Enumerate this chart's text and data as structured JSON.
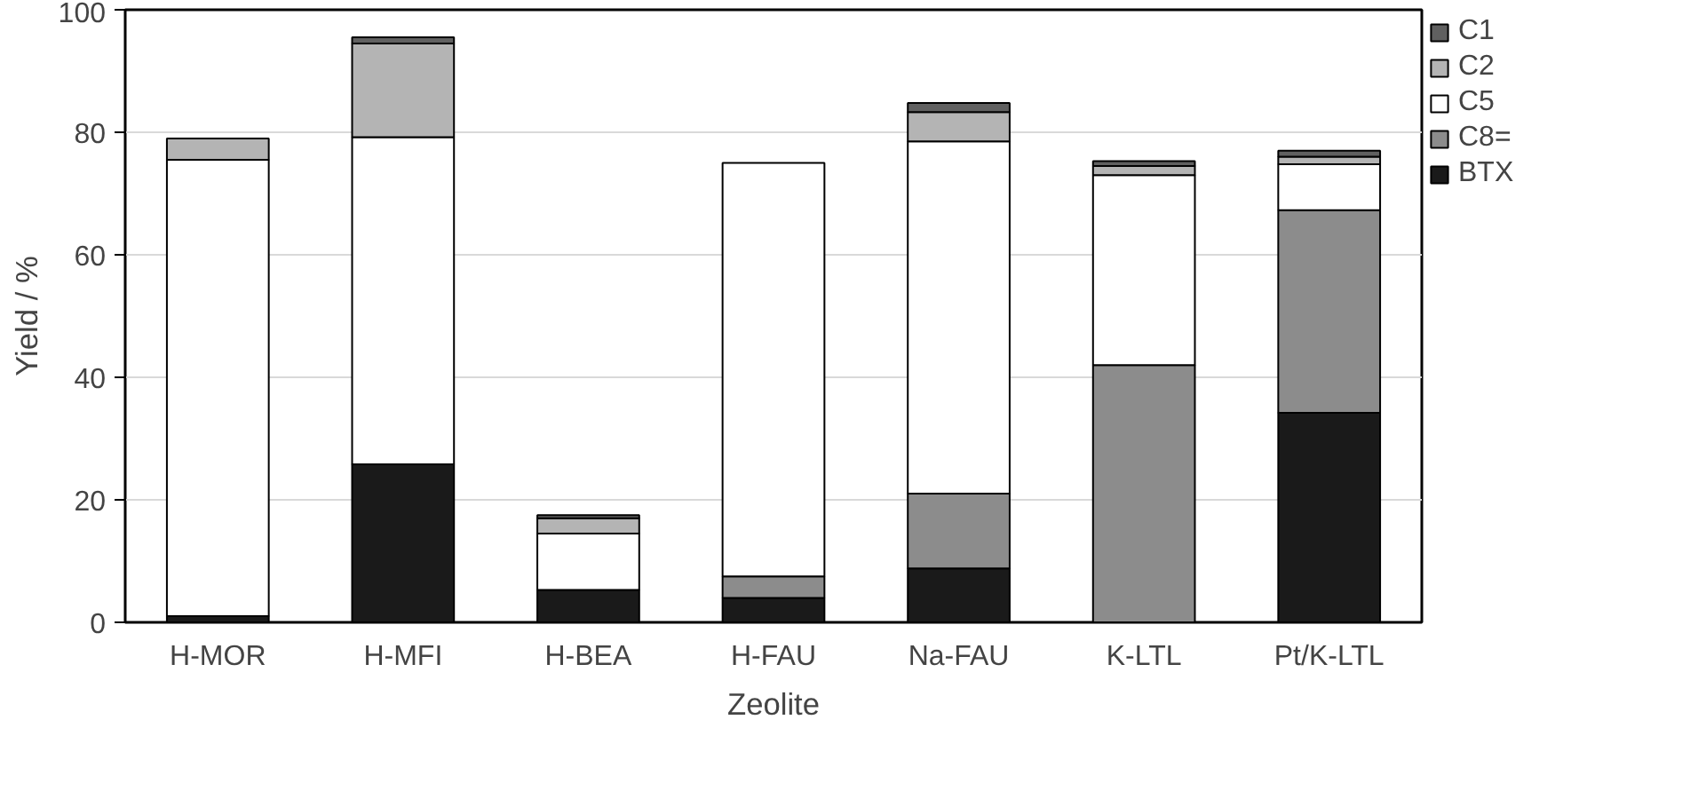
{
  "chart_data": {
    "type": "bar",
    "stacked": true,
    "xlabel": "Zeolite",
    "ylabel": "Yield / %",
    "categories": [
      "H-MOR",
      "H-MFI",
      "H-BEA",
      "H-FAU",
      "Na-FAU",
      "K-LTL",
      "Pt/K-LTL"
    ],
    "series": [
      {
        "name": "BTX",
        "color": "#1a1a1a",
        "values": [
          1,
          25.8,
          5.3,
          4,
          8.8,
          0,
          34.2
        ]
      },
      {
        "name": "C8=",
        "color": "#8c8c8c",
        "values": [
          0,
          0,
          0,
          3.5,
          12.2,
          42,
          33.1
        ]
      },
      {
        "name": "C5",
        "color": "#ffffff",
        "values": [
          74.5,
          53.4,
          9.2,
          67.5,
          57.5,
          31,
          7.5
        ]
      },
      {
        "name": "C2",
        "color": "#b4b4b4",
        "values": [
          3.5,
          15.3,
          2.5,
          null,
          4.8,
          1.5,
          1.2
        ]
      },
      {
        "name": "C1",
        "color": "#606060",
        "values": [
          0,
          1,
          0.5,
          null,
          1.5,
          0.8,
          1
        ]
      }
    ],
    "ylim": [
      0,
      100
    ],
    "yticks": [
      0,
      20,
      40,
      60,
      80,
      100
    ],
    "grid": "y",
    "legend": "right"
  }
}
